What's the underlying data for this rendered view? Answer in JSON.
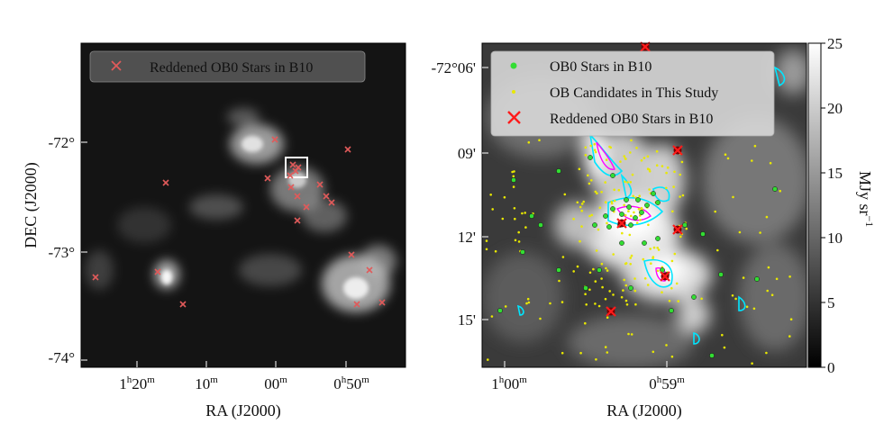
{
  "left_panel": {
    "legend_label": "Reddened OB0 Stars in B10",
    "legend_marker_color": "#e05a5a",
    "x_axis_label": "RA (J2000)",
    "y_axis_label": "DEC (J2000)",
    "x_ticks": [
      {
        "h": "1",
        "m": "20"
      },
      {
        "h": "",
        "m": "10"
      },
      {
        "h": "",
        "m": "00"
      },
      {
        "h": "0",
        "m": "50"
      }
    ],
    "y_ticks": [
      "-72°",
      "-73°",
      "-74°"
    ]
  },
  "right_panel": {
    "legend": [
      {
        "label": "OB0 Stars in B10",
        "color": "#33dd33"
      },
      {
        "label": "OB Candidates in This Study",
        "color": "#e8e800"
      },
      {
        "label": "Reddened OB0 Stars in B10",
        "color": "#ff1a1a"
      }
    ],
    "x_axis_label": "RA (J2000)",
    "x_ticks": [
      {
        "h": "1",
        "m": "00"
      },
      {
        "h": "0",
        "m": "59"
      }
    ],
    "y_ticks": [
      "-72°06'",
      "09'",
      "12'",
      "15'"
    ],
    "contour_colors": [
      "#00e5ff",
      "#ff00ff"
    ]
  },
  "colorbar": {
    "label": "MJy sr",
    "label_exp": "−1",
    "ticks": [
      "0",
      "5",
      "10",
      "15",
      "20",
      "25"
    ]
  }
}
